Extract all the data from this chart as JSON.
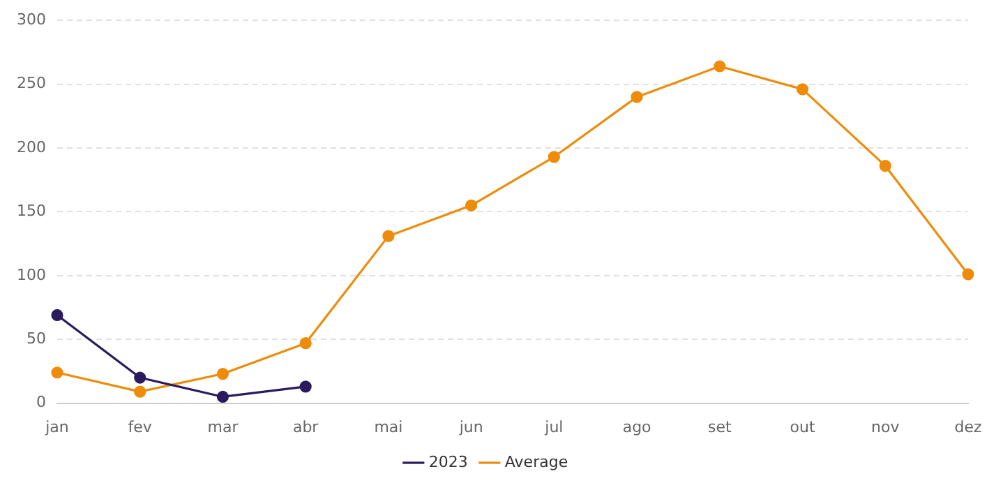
{
  "chart_data": {
    "type": "line",
    "categories": [
      "jan",
      "fev",
      "mar",
      "abr",
      "mai",
      "jun",
      "jul",
      "ago",
      "set",
      "out",
      "nov",
      "dez"
    ],
    "series": [
      {
        "name": "2023",
        "color": "#2a1b5e",
        "values": [
          69,
          20,
          5,
          13,
          null,
          null,
          null,
          null,
          null,
          null,
          null,
          null
        ]
      },
      {
        "name": "Average",
        "color": "#ee8c0a",
        "values": [
          24,
          9,
          23,
          47,
          131,
          155,
          193,
          240,
          264,
          246,
          186,
          101
        ]
      }
    ],
    "ylim": [
      0,
      300
    ],
    "yticks": [
      0,
      50,
      100,
      150,
      200,
      250,
      300
    ],
    "grid": "y",
    "legend": "bottom",
    "marker": "circle",
    "line_style": "solid"
  }
}
